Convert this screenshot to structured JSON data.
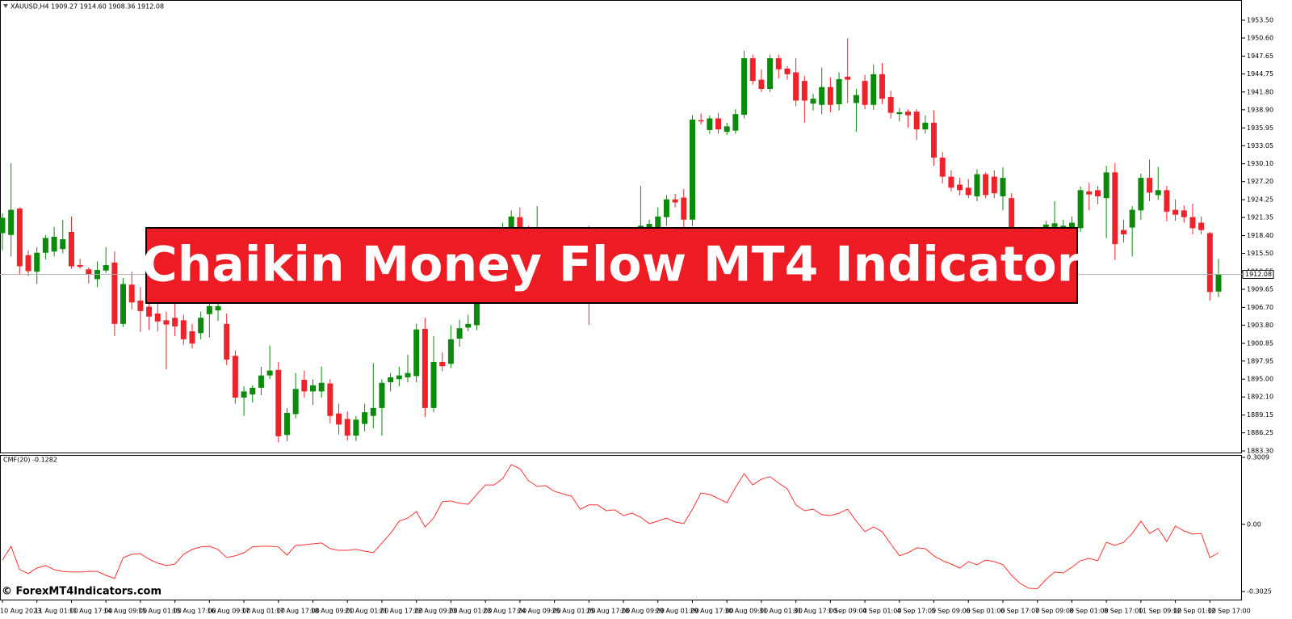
{
  "header": "XAUUSD,H4  1909.27 1914.60 1908.36 1912.08",
  "banner": "Chaikin Money Flow MT4 Indicator",
  "watermark": "© ForexMT4Indicators.com",
  "chart_data": [
    {
      "type": "candlestick",
      "up_color": "#0b8a0b",
      "down_color": "#ee2229",
      "categories": [
        "10 Aug 2023",
        null,
        null,
        null,
        "11 Aug 01:00",
        null,
        null,
        null,
        "11 Aug 17:00",
        null,
        null,
        null,
        "14 Aug 09:00",
        null,
        null,
        null,
        "15 Aug 01:00",
        null,
        null,
        null,
        "15 Aug 17:00",
        null,
        null,
        null,
        "16 Aug 09:00",
        null,
        null,
        null,
        "17 Aug 01:00",
        null,
        null,
        null,
        "17 Aug 17:00",
        null,
        null,
        null,
        "18 Aug 09:00",
        null,
        null,
        null,
        "21 Aug 01:00",
        null,
        null,
        null,
        "21 Aug 17:00",
        null,
        null,
        null,
        "22 Aug 09:00",
        null,
        null,
        null,
        "23 Aug 01:00",
        null,
        null,
        null,
        "23 Aug 17:00",
        null,
        null,
        null,
        "24 Aug 09:00",
        null,
        null,
        null,
        "25 Aug 01:00",
        null,
        null,
        null,
        "25 Aug 17:00",
        null,
        null,
        null,
        "28 Aug 09:00",
        null,
        null,
        null,
        "29 Aug 01:00",
        null,
        null,
        null,
        "29 Aug 17:00",
        null,
        null,
        null,
        "30 Aug 09:00",
        null,
        null,
        null,
        "31 Aug 01:00",
        null,
        null,
        null,
        "31 Aug 17:00",
        null,
        null,
        null,
        "1 Sep 09:00",
        null,
        null,
        null,
        "4 Sep 01:00",
        null,
        null,
        null,
        "4 Sep 17:00",
        null,
        null,
        null,
        "5 Sep 09:00",
        null,
        null,
        null,
        "6 Sep 01:00",
        null,
        null,
        null,
        "6 Sep 17:00",
        null,
        null,
        null,
        "7 Sep 09:00",
        null,
        null,
        null,
        "8 Sep 01:00",
        null,
        null,
        null,
        "8 Sep 17:00",
        null,
        null,
        null,
        "11 Sep 09:00",
        null,
        null,
        null,
        "12 Sep 01:00",
        null,
        null,
        null,
        "12 Sep 17:00",
        null
      ],
      "open": [
        1918.8,
        1918.5,
        1922.8,
        1915.2,
        1912.5,
        1915.6,
        1915.8,
        1916.2,
        1919,
        1913.6,
        1912.9,
        1911.3,
        1912.7,
        1914,
        1904,
        1910.4,
        1907.8,
        1906.8,
        1905.7,
        1904.6,
        1905,
        1904.6,
        1902.8,
        1902.5,
        1905.6,
        1906.2,
        1904,
        1898.8,
        1892,
        1892.5,
        1893.6,
        1895.6,
        1896.5,
        1885.9,
        1889.3,
        1894.9,
        1893,
        1893,
        1894.3,
        1889.4,
        1888.5,
        1885.8,
        1887.7,
        1889,
        1890.3,
        1894.5,
        1895,
        1895.3,
        1895.5,
        1903.2,
        1890.3,
        1897.8,
        1897.5,
        1901.6,
        1903.4,
        1903.8,
        1909.5,
        1913.5,
        1916.5,
        1919.5,
        1921.4,
        1919.5,
        1917,
        1918.5,
        1915.5,
        1913,
        1915,
        1917,
        1914,
        1910,
        1913,
        1914.5,
        1916.8,
        1915,
        1918,
        1919.5,
        1919,
        1921.4,
        1924.3,
        1924.6,
        1921,
        1937.2,
        1935.6,
        1937.5,
        1935.3,
        1935.5,
        1938.1,
        1947.3,
        1943.8,
        1942.3,
        1947.3,
        1945.6,
        1945,
        1943.6,
        1939.9,
        1939.7,
        1942.6,
        1939.8,
        1944.3,
        1940,
        1943.6,
        1939.7,
        1944.7,
        1941,
        1938.2,
        1938.6,
        1938.6,
        1935.7,
        1936.8,
        1931.1,
        1928,
        1926.7,
        1926.2,
        1924.8,
        1928.4,
        1928,
        1924.8,
        1924.5,
        1917.3,
        1915,
        1913.5,
        1919.6,
        1919.8,
        1919,
        1919.5,
        1919.6,
        1925.6,
        1925.8,
        1924.5,
        1928.7,
        1919.3,
        1919.7,
        1922.5,
        1927.8,
        1925,
        1925.8,
        1922.6,
        1922.5,
        1921.4,
        1920.5,
        1918.8,
        1909.27
      ],
      "high": [
        1922,
        1930.2,
        1923,
        1916,
        1916.5,
        1918.5,
        1919.8,
        1921,
        1921.5,
        1914.6,
        1913.2,
        1914.2,
        1916.5,
        1915.8,
        1911.5,
        1912.5,
        1910,
        1908,
        1908,
        1906,
        1909,
        1905.5,
        1904,
        1906,
        1908.5,
        1908.9,
        1905.7,
        1899.7,
        1893.8,
        1894,
        1897,
        1900.5,
        1897.8,
        1890.3,
        1896,
        1896.4,
        1895,
        1897,
        1895,
        1891,
        1889.7,
        1889,
        1891,
        1897.6,
        1895,
        1896,
        1897,
        1899,
        1904,
        1905,
        1902,
        1899.4,
        1903.8,
        1904.7,
        1905.5,
        1910.5,
        1915.5,
        1918,
        1920.5,
        1922.5,
        1923,
        1920,
        1923.2,
        1919.5,
        1916.5,
        1916.5,
        1918,
        1918.5,
        1920,
        1914,
        1916,
        1918,
        1918,
        1919,
        1926.5,
        1921,
        1923,
        1925,
        1925.2,
        1926,
        1938,
        1938.3,
        1938,
        1938.4,
        1936.8,
        1939,
        1948.5,
        1947.9,
        1945.5,
        1947.9,
        1947.9,
        1946,
        1947.3,
        1944.4,
        1941.5,
        1945.8,
        1944.2,
        1945,
        1950.6,
        1942.3,
        1944.6,
        1946.3,
        1946.5,
        1942,
        1939.2,
        1939,
        1939,
        1938,
        1938.8,
        1932,
        1929,
        1927.8,
        1927.6,
        1929.2,
        1928.7,
        1929,
        1929.5,
        1925.3,
        1918.5,
        1916,
        1917.5,
        1920.8,
        1924,
        1921,
        1921.5,
        1926.4,
        1927,
        1926.5,
        1929.8,
        1930.2,
        1921,
        1923.2,
        1928.5,
        1930.8,
        1929.6,
        1926.5,
        1924.3,
        1923.3,
        1923.6,
        1921.5,
        1919,
        1914.6
      ],
      "low": [
        1916,
        1915,
        1912,
        1911.8,
        1910.5,
        1914.5,
        1915,
        1915.5,
        1913,
        1913,
        1910.6,
        1910,
        1912.3,
        1902,
        1903.5,
        1906.4,
        1902.7,
        1903,
        1902.8,
        1896.6,
        1902,
        1900.6,
        1900,
        1901.5,
        1901.8,
        1904.5,
        1897.3,
        1891,
        1889,
        1891.2,
        1892.4,
        1895,
        1884.7,
        1884.9,
        1888.6,
        1892,
        1890.8,
        1892,
        1887.8,
        1886,
        1885,
        1884.9,
        1886.5,
        1887,
        1885.8,
        1893,
        1893.8,
        1894.5,
        1894.5,
        1888.8,
        1889.6,
        1896.3,
        1896.8,
        1900.3,
        1902.8,
        1903,
        1908.5,
        1912.5,
        1915.5,
        1918.8,
        1918.5,
        1916,
        1916,
        1914.5,
        1912,
        1912,
        1914,
        1912.5,
        1903.8,
        1909,
        1912,
        1913.8,
        1914,
        1914,
        1917,
        1918.5,
        1918.5,
        1920,
        1923,
        1919.5,
        1920,
        1936.5,
        1935,
        1935,
        1934.8,
        1935,
        1937.5,
        1943,
        1941.8,
        1941.8,
        1944,
        1943.8,
        1939.5,
        1936.8,
        1938.8,
        1938.2,
        1938.5,
        1938.8,
        1940,
        1935.3,
        1939,
        1938.9,
        1939.8,
        1937.5,
        1937,
        1936,
        1934,
        1935,
        1929.8,
        1926.9,
        1925.6,
        1925,
        1924.5,
        1924,
        1924.5,
        1924.5,
        1922.5,
        1915,
        1914,
        1912,
        1912.5,
        1918.8,
        1919,
        1918,
        1918.5,
        1919,
        1922.5,
        1923.5,
        1918,
        1914.4,
        1917.3,
        1915,
        1921,
        1924,
        1924.2,
        1920.7,
        1920.8,
        1920.5,
        1918.6,
        1918.6,
        1907.8,
        1908.36
      ],
      "close": [
        1921.3,
        1922.6,
        1913.4,
        1912.6,
        1915.6,
        1918,
        1918.2,
        1917.8,
        1913.4,
        1913.3,
        1912.1,
        1912.8,
        1913.6,
        1904,
        1910.5,
        1907.5,
        1906.1,
        1905.2,
        1904.4,
        1903.9,
        1903.6,
        1901.5,
        1900.8,
        1905,
        1906.9,
        1906.9,
        1898.2,
        1892,
        1893,
        1893.6,
        1895.6,
        1896.4,
        1885.7,
        1889.5,
        1893.4,
        1893,
        1894,
        1894.4,
        1889,
        1887.6,
        1885.8,
        1888.4,
        1889.6,
        1890.3,
        1894.4,
        1895.3,
        1895.6,
        1896,
        1903.1,
        1890.3,
        1897.8,
        1897.1,
        1901.5,
        1903.3,
        1904,
        1909.5,
        1914,
        1917,
        1919,
        1921.5,
        1919.6,
        1917,
        1919,
        1915.5,
        1913,
        1915.5,
        1917,
        1914,
        1910,
        1913,
        1915,
        1916.8,
        1914.8,
        1918,
        1920,
        1920.3,
        1921.5,
        1924.3,
        1923.8,
        1921,
        1937.3,
        1937,
        1937.5,
        1935.7,
        1936.2,
        1938.2,
        1947.3,
        1943.6,
        1942.3,
        1947.3,
        1945.5,
        1944.7,
        1940.4,
        1940.4,
        1940.7,
        1942.6,
        1939.7,
        1943.9,
        1943.8,
        1941.3,
        1939.7,
        1944.7,
        1940.7,
        1938.4,
        1938.5,
        1938,
        1935.7,
        1936.8,
        1931.1,
        1928,
        1926.2,
        1925.8,
        1925,
        1928.4,
        1925,
        1925.3,
        1927.8,
        1917.3,
        1915,
        1913.5,
        1916.5,
        1920.2,
        1920.4,
        1920,
        1920.5,
        1925.8,
        1925.1,
        1924.8,
        1928.7,
        1917,
        1918.6,
        1922.6,
        1927.8,
        1925.4,
        1925.8,
        1922.3,
        1921.8,
        1921.4,
        1919.6,
        1919.3,
        1909.2,
        1912.08
      ],
      "current_price": 1912.08,
      "ylim": [
        1883.04,
        1956.53
      ],
      "yticks": [
        {
          "value": 1953.5,
          "label": "1953.50"
        },
        {
          "value": 1950.6,
          "label": "1950.60"
        },
        {
          "value": 1947.65,
          "label": "1947.65"
        },
        {
          "value": 1944.75,
          "label": "1944.75"
        },
        {
          "value": 1941.8,
          "label": "1941.80"
        },
        {
          "value": 1938.9,
          "label": "1938.90"
        },
        {
          "value": 1935.95,
          "label": "1935.95"
        },
        {
          "value": 1933.05,
          "label": "1933.05"
        },
        {
          "value": 1930.1,
          "label": "1930.10"
        },
        {
          "value": 1927.2,
          "label": "1927.20"
        },
        {
          "value": 1924.25,
          "label": "1924.25"
        },
        {
          "value": 1921.35,
          "label": "1921.35"
        },
        {
          "value": 1918.4,
          "label": "1918.40"
        },
        {
          "value": 1915.5,
          "label": "1915.50"
        },
        {
          "value": 1912.55,
          "label": "1912.55"
        },
        {
          "value": 1909.65,
          "label": "1909.65"
        },
        {
          "value": 1906.7,
          "label": "1906.70"
        },
        {
          "value": 1903.8,
          "label": "1903.80"
        },
        {
          "value": 1900.85,
          "label": "1900.85"
        },
        {
          "value": 1897.95,
          "label": "1897.95"
        },
        {
          "value": 1895,
          "label": "1895.00"
        },
        {
          "value": 1892.1,
          "label": "1892.10"
        },
        {
          "value": 1889.15,
          "label": "1889.15"
        },
        {
          "value": 1886.25,
          "label": "1886.25"
        },
        {
          "value": 1883.3,
          "label": "1883.30"
        }
      ]
    },
    {
      "type": "line",
      "title": "CMF(20) -0.1282",
      "color": "#ff3030",
      "values": [
        -0.161,
        -0.099,
        -0.204,
        -0.222,
        -0.197,
        -0.186,
        -0.204,
        -0.212,
        -0.215,
        -0.215,
        -0.212,
        -0.212,
        -0.23,
        -0.244,
        -0.15,
        -0.135,
        -0.132,
        -0.157,
        -0.175,
        -0.186,
        -0.179,
        -0.135,
        -0.113,
        -0.102,
        -0.099,
        -0.113,
        -0.15,
        -0.142,
        -0.128,
        -0.102,
        -0.099,
        -0.099,
        -0.102,
        -0.139,
        -0.095,
        -0.092,
        -0.088,
        -0.084,
        -0.11,
        -0.117,
        -0.117,
        -0.113,
        -0.121,
        -0.128,
        -0.084,
        -0.041,
        0.014,
        0.028,
        0.057,
        -0.012,
        0.028,
        0.101,
        0.105,
        0.094,
        0.09,
        0.134,
        0.177,
        0.177,
        0.206,
        0.268,
        0.25,
        0.196,
        0.17,
        0.174,
        0.148,
        0.137,
        0.126,
        0.068,
        0.087,
        0.087,
        0.061,
        0.065,
        0.039,
        0.05,
        0.032,
        0.003,
        0.014,
        0.028,
        0.01,
        0.003,
        0.068,
        0.141,
        0.134,
        0.116,
        0.097,
        0.166,
        0.228,
        0.177,
        0.203,
        0.214,
        0.185,
        0.159,
        0.087,
        0.061,
        0.068,
        0.043,
        0.039,
        0.05,
        0.068,
        0.014,
        -0.033,
        -0.012,
        -0.033,
        -0.088,
        -0.142,
        -0.128,
        -0.106,
        -0.11,
        -0.142,
        -0.164,
        -0.179,
        -0.197,
        -0.168,
        -0.182,
        -0.161,
        -0.168,
        -0.182,
        -0.23,
        -0.266,
        -0.288,
        -0.29,
        -0.248,
        -0.215,
        -0.219,
        -0.193,
        -0.164,
        -0.153,
        -0.164,
        -0.081,
        -0.095,
        -0.081,
        -0.041,
        0.014,
        -0.041,
        -0.019,
        -0.077,
        -0.008,
        -0.03,
        -0.044,
        -0.041,
        -0.15,
        -0.1282
      ],
      "ylim": [
        -0.3389,
        0.3118
      ],
      "yticks": [
        0.3009,
        {
          "value": 0,
          "label": "0.00"
        },
        -0.3025
      ]
    }
  ]
}
